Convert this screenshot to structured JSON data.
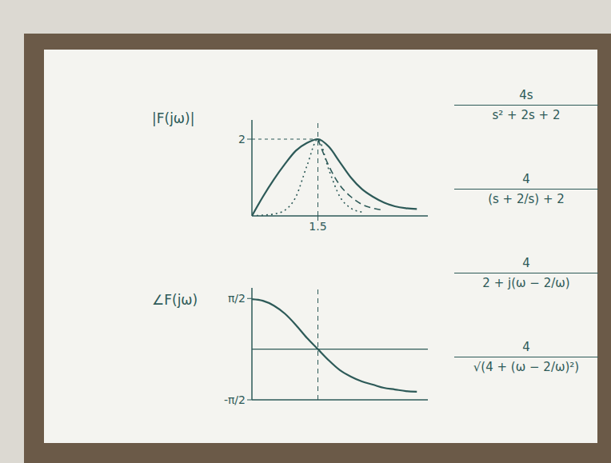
{
  "chart_data": [
    {
      "type": "line",
      "y_label": "|F(jω)|",
      "x": [
        0,
        0.25,
        0.5,
        0.75,
        1.0,
        1.25,
        1.5,
        1.75,
        2.0,
        2.25,
        2.5,
        2.75,
        3.0,
        3.25,
        3.5,
        3.75
      ],
      "series": [
        {
          "color": "#2d5a58",
          "line_style": "solid",
          "values": [
            0,
            0.5,
            0.95,
            1.35,
            1.7,
            1.9,
            2,
            1.8,
            1.4,
            1.0,
            0.7,
            0.5,
            0.35,
            0.25,
            0.2,
            0.18
          ]
        },
        {
          "color": "#2d5a58",
          "line_style": "dotted",
          "values": [
            0,
            0.02,
            0.05,
            0.15,
            0.5,
            1.3,
            2,
            1.2,
            0.5,
            0.2,
            0.1,
            null,
            null,
            null,
            null,
            null
          ]
        },
        {
          "color": "#2d5a58",
          "line_style": "dashed",
          "values": [
            null,
            null,
            null,
            null,
            null,
            null,
            2,
            1.3,
            0.8,
            0.5,
            0.3,
            0.2,
            0.15,
            null,
            null,
            null
          ]
        }
      ],
      "xlim": [
        0,
        4
      ],
      "xticks": [
        1.5
      ],
      "ylim": [
        0,
        2.5
      ],
      "yticks": [
        2
      ]
    },
    {
      "type": "line",
      "y_label": "∠F(jω)",
      "x": [
        0,
        0.25,
        0.5,
        0.75,
        1.0,
        1.25,
        1.5,
        1.75,
        2.0,
        2.25,
        2.5,
        2.75,
        3.0,
        3.25,
        3.5,
        3.75
      ],
      "series": [
        {
          "color": "#2d5a58",
          "line_style": "solid",
          "values": [
            1.55,
            1.5,
            1.35,
            1.1,
            0.75,
            0.35,
            0,
            -0.35,
            -0.65,
            -0.85,
            -1.0,
            -1.1,
            -1.2,
            -1.25,
            -1.3,
            -1.32
          ]
        }
      ],
      "xlim": [
        0,
        4
      ],
      "xticks": [
        1.5
      ],
      "tick_labels": "y",
      "ylim": [
        -1.5708,
        1.9
      ],
      "yticks": [
        {
          "value": 1.5708,
          "label": "π/2"
        },
        {
          "value": -1.5708,
          "label": "-π/2"
        }
      ]
    }
  ],
  "equations": [
    {
      "numerator": "4s",
      "denominator": "s² + 2s + 2"
    },
    {
      "numerator": "4",
      "denominator": "(s + 2/s) + 2"
    },
    {
      "numerator": "4",
      "denominator": "2 + j(ω − 2/ω)"
    },
    {
      "numerator": "4",
      "denominator": "√(4 + (ω − 2/ω)²)"
    }
  ]
}
